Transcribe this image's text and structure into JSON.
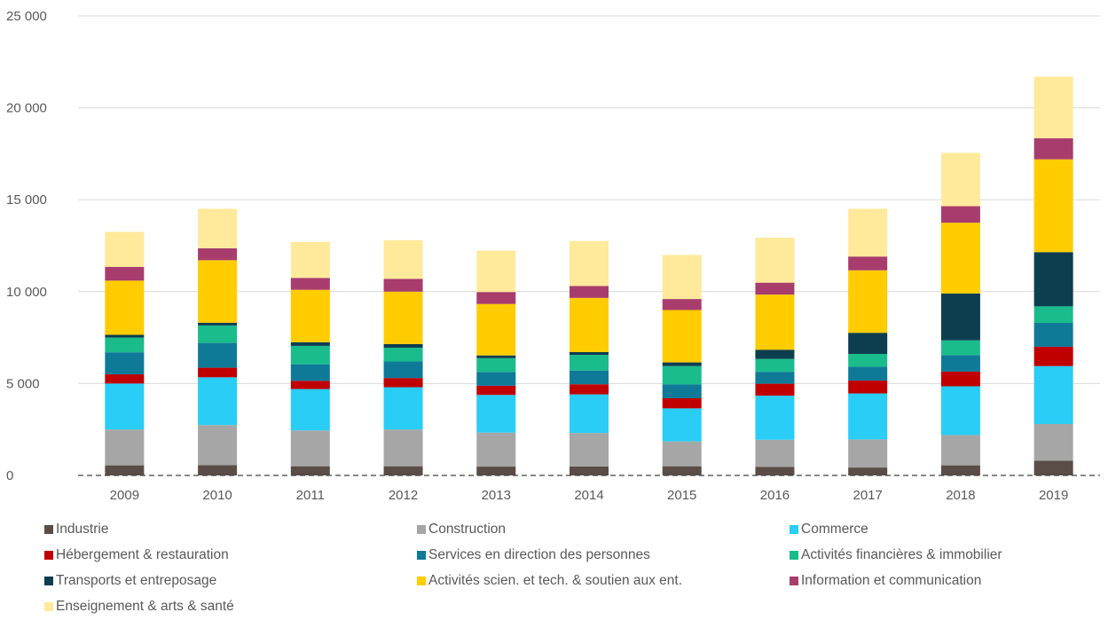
{
  "chart_data": {
    "type": "bar",
    "stacked": true,
    "categories": [
      "2009",
      "2010",
      "2011",
      "2012",
      "2013",
      "2014",
      "2015",
      "2016",
      "2017",
      "2018",
      "2019"
    ],
    "ylim": [
      0,
      25000
    ],
    "yticks": [
      0,
      5000,
      10000,
      15000,
      20000,
      25000
    ],
    "ytick_labels": [
      "0",
      "5 000",
      "10 000",
      "15 000",
      "20 000",
      "25 000"
    ],
    "grid": true,
    "legend_position": "bottom",
    "series": [
      {
        "name": "Industrie",
        "color": "#5a4d47",
        "values": [
          550,
          560,
          500,
          500,
          480,
          490,
          500,
          460,
          430,
          550,
          800
        ]
      },
      {
        "name": "Construction",
        "color": "#a6a6a6",
        "values": [
          1950,
          2180,
          1950,
          2000,
          1850,
          1820,
          1350,
          1480,
          1530,
          1650,
          2000
        ]
      },
      {
        "name": "Commerce",
        "color": "#29cdf5",
        "values": [
          2500,
          2600,
          2250,
          2300,
          2050,
          2100,
          1800,
          2400,
          2500,
          2650,
          3150
        ]
      },
      {
        "name": "Hébergement & restauration",
        "color": "#c00000",
        "values": [
          500,
          520,
          450,
          500,
          500,
          550,
          550,
          650,
          700,
          800,
          1050
        ]
      },
      {
        "name": "Services en direction des personnes",
        "color": "#0e7a98",
        "values": [
          1200,
          1350,
          900,
          900,
          750,
          750,
          750,
          650,
          750,
          900,
          1300
        ]
      },
      {
        "name": "Activités financières & immobilier",
        "color": "#1abc8c",
        "values": [
          800,
          950,
          1000,
          750,
          750,
          850,
          1000,
          700,
          700,
          800,
          900
        ]
      },
      {
        "name": "Transports et entreposage",
        "color": "#0d3e4f",
        "values": [
          150,
          150,
          200,
          200,
          150,
          150,
          200,
          500,
          1150,
          2550,
          2950
        ]
      },
      {
        "name": "Activités scien. et tech. & soutien aux ent.",
        "color": "#ffcc00",
        "values": [
          2950,
          3400,
          2850,
          2850,
          2800,
          2950,
          2850,
          3000,
          3400,
          3850,
          5050
        ]
      },
      {
        "name": "Information et communication",
        "color": "#a83d6d",
        "values": [
          750,
          650,
          650,
          700,
          650,
          650,
          600,
          650,
          750,
          900,
          1150
        ]
      },
      {
        "name": "Enseignement & arts & santé",
        "color": "#ffe99a",
        "values": [
          1900,
          2150,
          1950,
          2100,
          2250,
          2450,
          2400,
          2450,
          2600,
          2900,
          3350
        ]
      }
    ]
  }
}
